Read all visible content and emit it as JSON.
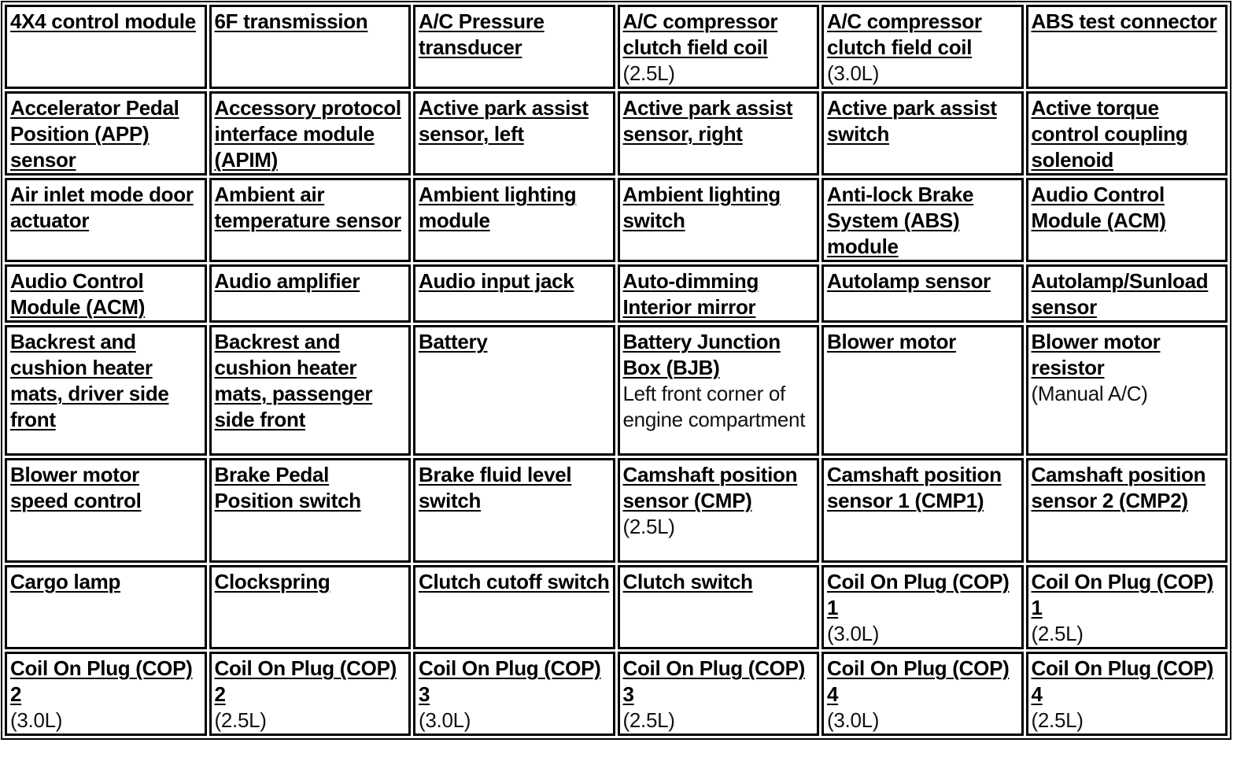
{
  "rows": [
    [
      {
        "label": "4X4 control module"
      },
      {
        "label": "6F transmission"
      },
      {
        "label": "A/C Pressure transducer"
      },
      {
        "label": "A/C compressor clutch field coil",
        "note": "(2.5L)"
      },
      {
        "label": "A/C compressor clutch field coil",
        "note": "(3.0L)"
      },
      {
        "label": "ABS test connector"
      }
    ],
    [
      {
        "label": "Accelerator Pedal Position (APP) sensor"
      },
      {
        "label": "Accessory protocol interface module (APIM)"
      },
      {
        "label": "Active park assist sensor, left"
      },
      {
        "label": "Active park assist sensor, right"
      },
      {
        "label": "Active park assist switch"
      },
      {
        "label": "Active torque control coupling solenoid"
      }
    ],
    [
      {
        "label": "Air inlet mode door actuator"
      },
      {
        "label": "Ambient air temperature sensor"
      },
      {
        "label": "Ambient lighting module"
      },
      {
        "label": "Ambient lighting switch"
      },
      {
        "label": "Anti-lock Brake System (ABS) module"
      },
      {
        "label": "Audio Control Module (ACM)"
      }
    ],
    [
      {
        "label": "Audio Control Module (ACM)"
      },
      {
        "label": "Audio amplifier"
      },
      {
        "label": "Audio input jack"
      },
      {
        "label": "Auto-dimming Interior mirror"
      },
      {
        "label": "Autolamp sensor"
      },
      {
        "label": "Autolamp/Sunload sensor"
      }
    ],
    [
      {
        "label": "Backrest and cushion heater mats, driver side front"
      },
      {
        "label": "Backrest and cushion heater mats, passenger side front"
      },
      {
        "label": "Battery"
      },
      {
        "label": "Battery Junction Box (BJB)",
        "note": "Left front corner of engine compartment"
      },
      {
        "label": "Blower motor"
      },
      {
        "label": "Blower motor resistor",
        "note": "(Manual A/C)"
      }
    ],
    [
      {
        "label": "Blower motor speed control"
      },
      {
        "label": "Brake Pedal Position switch"
      },
      {
        "label": "Brake fluid level switch"
      },
      {
        "label": "Camshaft position sensor (CMP)",
        "note": "(2.5L)"
      },
      {
        "label": "Camshaft position sensor 1 (CMP1)"
      },
      {
        "label": "Camshaft position sensor 2 (CMP2)"
      }
    ],
    [
      {
        "label": "Cargo lamp"
      },
      {
        "label": "Clockspring"
      },
      {
        "label": "Clutch cutoff switch"
      },
      {
        "label": "Clutch switch"
      },
      {
        "label": "Coil On Plug (COP) 1",
        "note": "(3.0L)"
      },
      {
        "label": "Coil On Plug (COP) 1",
        "note": "(2.5L)"
      }
    ],
    [
      {
        "label": "Coil On Plug (COP) 2",
        "note": "(3.0L)"
      },
      {
        "label": "Coil On Plug (COP) 2",
        "note": "(2.5L)"
      },
      {
        "label": "Coil On Plug (COP) 3",
        "note": "(3.0L)"
      },
      {
        "label": "Coil On Plug (COP) 3",
        "note": "(2.5L)"
      },
      {
        "label": "Coil On Plug (COP) 4",
        "note": "(3.0L)"
      },
      {
        "label": "Coil On Plug (COP) 4",
        "note": "(2.5L)"
      }
    ]
  ]
}
